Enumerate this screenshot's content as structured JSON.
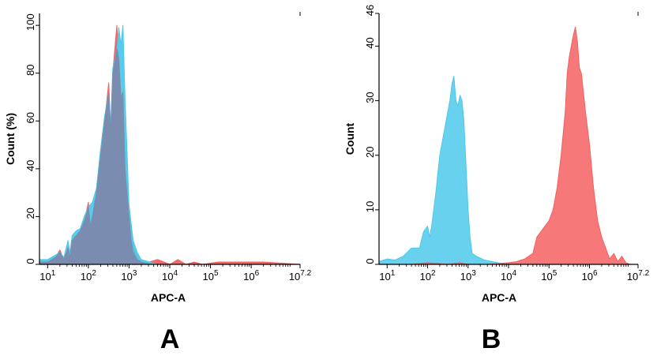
{
  "chart_data": [
    {
      "type": "area",
      "panel_label": "A",
      "xlabel": "APC-A",
      "ylabel": "Count (%)",
      "x_scale": "log10",
      "xlim": [
        0.8,
        7.2
      ],
      "ylim": [
        0,
        105
      ],
      "x_ticks": [
        {
          "value": 1,
          "base": "10",
          "exp": "1"
        },
        {
          "value": 2,
          "base": "10",
          "exp": "2"
        },
        {
          "value": 3,
          "base": "10",
          "exp": "3"
        },
        {
          "value": 4,
          "base": "10",
          "exp": "4"
        },
        {
          "value": 5,
          "base": "10",
          "exp": "5"
        },
        {
          "value": 6,
          "base": "10",
          "exp": "6"
        },
        {
          "value": 7.2,
          "base": "10",
          "exp": "7.2"
        }
      ],
      "y_ticks": [
        {
          "value": 0,
          "label": "0"
        },
        {
          "value": 20,
          "label": "20"
        },
        {
          "value": 40,
          "label": "40"
        },
        {
          "value": 60,
          "label": "60"
        },
        {
          "value": 80,
          "label": "80"
        },
        {
          "value": 100,
          "label": "100"
        }
      ],
      "grid": false,
      "series": [
        {
          "color": "#f46060",
          "x": [
            0.8,
            1.0,
            1.2,
            1.3,
            1.4,
            1.5,
            1.55,
            1.6,
            1.7,
            1.8,
            1.9,
            2.0,
            2.05,
            2.1,
            2.2,
            2.3,
            2.4,
            2.5,
            2.55,
            2.6,
            2.7,
            2.75,
            2.8,
            2.9,
            3.0,
            3.05,
            3.1,
            3.2,
            3.3,
            3.5,
            3.7,
            4.0,
            4.2,
            4.4,
            4.6,
            4.8,
            5.2,
            6.3,
            7.2
          ],
          "y": [
            1,
            1,
            3,
            6,
            2,
            7,
            3,
            10,
            12,
            14,
            18,
            26,
            16,
            20,
            30,
            45,
            60,
            76,
            55,
            80,
            100,
            86,
            70,
            40,
            20,
            14,
            8,
            3,
            1,
            1,
            2,
            0,
            2,
            0,
            1,
            0,
            1,
            1,
            0
          ]
        },
        {
          "color": "#4ec9ea",
          "x": [
            0.8,
            1.0,
            1.2,
            1.3,
            1.4,
            1.5,
            1.55,
            1.6,
            1.7,
            1.8,
            1.9,
            2.0,
            2.1,
            2.2,
            2.3,
            2.4,
            2.5,
            2.55,
            2.6,
            2.7,
            2.75,
            2.8,
            2.85,
            2.9,
            3.0,
            3.1,
            3.2,
            3.3,
            3.5,
            3.7,
            4.0,
            7.2
          ],
          "y": [
            2,
            2,
            4,
            5,
            3,
            10,
            5,
            12,
            14,
            15,
            20,
            24,
            26,
            32,
            48,
            62,
            72,
            58,
            82,
            90,
            99,
            92,
            100,
            70,
            25,
            10,
            5,
            2,
            1,
            0,
            0,
            0
          ]
        },
        {
          "color": "#7a8db0",
          "x": [
            0.8,
            1.0,
            1.2,
            1.3,
            1.4,
            1.5,
            1.55,
            1.6,
            1.7,
            1.8,
            1.9,
            2.0,
            2.05,
            2.1,
            2.2,
            2.3,
            2.4,
            2.5,
            2.55,
            2.6,
            2.7,
            2.75,
            2.8,
            2.85,
            2.9,
            3.0,
            3.05,
            3.1,
            3.2,
            3.3,
            3.5,
            7.2
          ],
          "y": [
            1,
            1,
            3,
            5,
            2,
            7,
            3,
            10,
            12,
            14,
            18,
            24,
            16,
            20,
            30,
            45,
            60,
            72,
            55,
            80,
            90,
            86,
            70,
            72,
            40,
            20,
            10,
            5,
            2,
            1,
            0,
            0
          ]
        }
      ]
    },
    {
      "type": "area",
      "panel_label": "B",
      "xlabel": "APC-A",
      "ylabel": "Count",
      "x_scale": "log10",
      "xlim": [
        0.8,
        7.2
      ],
      "ylim": [
        0,
        46
      ],
      "x_ticks": [
        {
          "value": 1,
          "base": "10",
          "exp": "1"
        },
        {
          "value": 2,
          "base": "10",
          "exp": "2"
        },
        {
          "value": 3,
          "base": "10",
          "exp": "3"
        },
        {
          "value": 4,
          "base": "10",
          "exp": "4"
        },
        {
          "value": 5,
          "base": "10",
          "exp": "5"
        },
        {
          "value": 6,
          "base": "10",
          "exp": "6"
        },
        {
          "value": 7.2,
          "base": "10",
          "exp": "7.2"
        }
      ],
      "y_ticks": [
        {
          "value": 0,
          "label": "0"
        },
        {
          "value": 10,
          "label": "10"
        },
        {
          "value": 20,
          "label": "20"
        },
        {
          "value": 30,
          "label": "30"
        },
        {
          "value": 40,
          "label": "40"
        },
        {
          "value": 46,
          "label": "46"
        }
      ],
      "grid": false,
      "series": [
        {
          "color": "#4ec9ea",
          "x": [
            0.8,
            1.0,
            1.2,
            1.4,
            1.6,
            1.8,
            1.9,
            2.0,
            2.05,
            2.1,
            2.2,
            2.3,
            2.4,
            2.5,
            2.55,
            2.6,
            2.65,
            2.7,
            2.75,
            2.8,
            2.85,
            2.9,
            3.0,
            3.05,
            3.1,
            3.2,
            3.4,
            3.6,
            3.8,
            4.0
          ],
          "y": [
            0.5,
            1,
            0.8,
            1.5,
            3,
            3,
            6,
            7,
            5,
            7,
            13,
            20,
            24,
            28,
            30,
            33,
            34.5,
            30,
            29,
            31,
            30,
            26,
            10,
            5,
            2,
            1.5,
            0.8,
            0.5,
            0.2,
            0
          ]
        },
        {
          "color": "#f46060",
          "x": [
            1.6,
            2.0,
            2.5,
            2.8,
            3.0,
            3.2,
            3.5,
            4.0,
            4.2,
            4.4,
            4.5,
            4.6,
            4.7,
            4.8,
            4.9,
            5.0,
            5.1,
            5.2,
            5.3,
            5.4,
            5.45,
            5.5,
            5.6,
            5.65,
            5.7,
            5.75,
            5.8,
            5.9,
            6.0,
            6.1,
            6.2,
            6.3,
            6.4,
            6.5,
            6.6,
            6.7,
            6.8,
            6.9,
            7.0
          ],
          "y": [
            0,
            0.3,
            0,
            0.3,
            0,
            0,
            0,
            0.3,
            0.5,
            1,
            1.5,
            2,
            5,
            6,
            7,
            8,
            10,
            14,
            20,
            28,
            35,
            38,
            42,
            43.5,
            41,
            36,
            35,
            28,
            22,
            14,
            8,
            5,
            3,
            1,
            2,
            0.5,
            1.5,
            0.3,
            0
          ]
        }
      ]
    }
  ]
}
